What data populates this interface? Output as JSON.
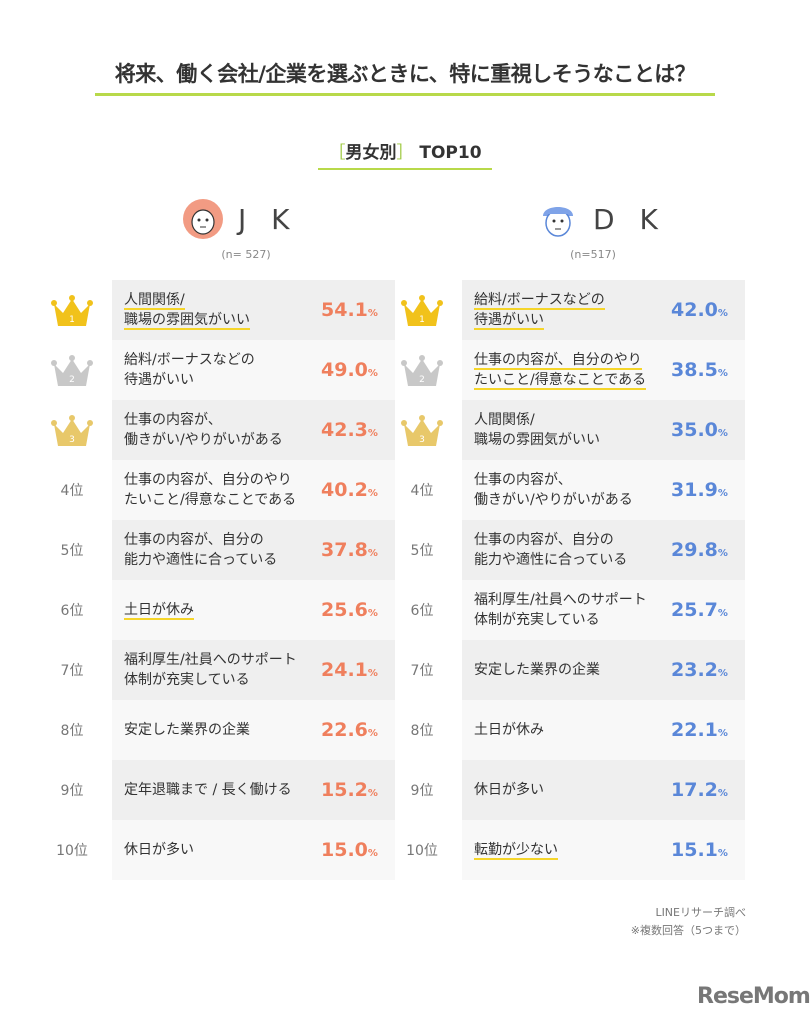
{
  "title": "将来、働く会社/企業を選ぶときに、特に重視しそうなことは？",
  "subtitle": {
    "open": "［",
    "label": "男女別",
    "close": "］",
    "top": "TOP10"
  },
  "colors": {
    "jk": "#ef7f5d",
    "dk": "#5a87d8",
    "gold": "#f1c21b",
    "silver": "#c8c8c8",
    "bronze": "#e8c86a"
  },
  "chart_data": {
    "type": "table",
    "title": "男女別 TOP10",
    "unit": "%",
    "series": [
      {
        "name": "J K",
        "n": "(n= 527)",
        "ranks": [
          "1",
          "2",
          "3",
          "4位",
          "5位",
          "6位",
          "7位",
          "8位",
          "9位",
          "10位"
        ],
        "items": [
          {
            "lines": [
              "人間関係/",
              "職場の雰囲気がいい"
            ],
            "value": "54.1",
            "underline": true
          },
          {
            "lines": [
              "給料/ボーナスなどの",
              "待遇がいい"
            ],
            "value": "49.0",
            "underline": false
          },
          {
            "lines": [
              "仕事の内容が、",
              "働きがい/やりがいがある"
            ],
            "value": "42.3",
            "underline": false
          },
          {
            "lines": [
              "仕事の内容が、自分のやり",
              "たいこと/得意なことである"
            ],
            "value": "40.2",
            "underline": false
          },
          {
            "lines": [
              "仕事の内容が、自分の",
              "能力や適性に合っている"
            ],
            "value": "37.8",
            "underline": false
          },
          {
            "lines": [
              "土日が休み"
            ],
            "value": "25.6",
            "underline": true
          },
          {
            "lines": [
              "福利厚生/社員へのサポート",
              "体制が充実している"
            ],
            "value": "24.1",
            "underline": false
          },
          {
            "lines": [
              "安定した業界の企業"
            ],
            "value": "22.6",
            "underline": false
          },
          {
            "lines": [
              "定年退職まで / 長く働ける"
            ],
            "value": "15.2",
            "underline": false
          },
          {
            "lines": [
              "休日が多い"
            ],
            "value": "15.0",
            "underline": false
          }
        ]
      },
      {
        "name": "D K",
        "n": "(n=517)",
        "ranks": [
          "1",
          "2",
          "3",
          "4位",
          "5位",
          "6位",
          "7位",
          "8位",
          "9位",
          "10位"
        ],
        "items": [
          {
            "lines": [
              "給料/ボーナスなどの",
              "待遇がいい"
            ],
            "value": "42.0",
            "underline": true
          },
          {
            "lines": [
              "仕事の内容が、自分のやり",
              "たいこと/得意なことである"
            ],
            "value": "38.5",
            "underline": true
          },
          {
            "lines": [
              "人間関係/",
              "職場の雰囲気がいい"
            ],
            "value": "35.0",
            "underline": false
          },
          {
            "lines": [
              "仕事の内容が、",
              "働きがい/やりがいがある"
            ],
            "value": "31.9",
            "underline": false
          },
          {
            "lines": [
              "仕事の内容が、自分の",
              "能力や適性に合っている"
            ],
            "value": "29.8",
            "underline": false
          },
          {
            "lines": [
              "福利厚生/社員へのサポート",
              "体制が充実している"
            ],
            "value": "25.7",
            "underline": false
          },
          {
            "lines": [
              "安定した業界の企業"
            ],
            "value": "23.2",
            "underline": false
          },
          {
            "lines": [
              "土日が休み"
            ],
            "value": "22.1",
            "underline": false
          },
          {
            "lines": [
              "休日が多い"
            ],
            "value": "17.2",
            "underline": false
          },
          {
            "lines": [
              "転勤が少ない"
            ],
            "value": "15.1",
            "underline": true
          }
        ]
      }
    ]
  },
  "footer": {
    "source": "LINEリサーチ調べ",
    "note": "※複数回答（5つまで）",
    "logo": "ReseMom."
  }
}
